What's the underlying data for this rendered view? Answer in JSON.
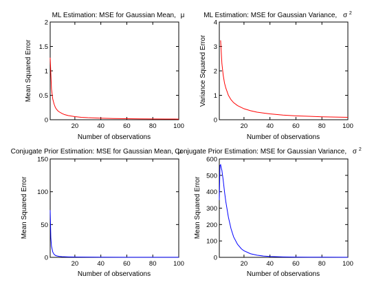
{
  "chart_data": [
    {
      "type": "line",
      "title": "ML Estimation: MSE for Gaussian Mean,",
      "title_symbol": "μ",
      "title_superscript": "",
      "xlabel": "Number of observations",
      "ylabel": "Mean Squared Error",
      "xlim": [
        1,
        100
      ],
      "ylim": [
        0,
        2
      ],
      "xticks": [
        20,
        40,
        60,
        80,
        100
      ],
      "yticks": [
        0,
        0.5,
        1,
        1.5,
        2
      ],
      "ytick_labels": [
        "0",
        "0.5",
        "1",
        "1.5",
        "2"
      ],
      "grid": false,
      "series": [
        {
          "color": "#ff0000",
          "x": [
            1,
            2,
            3,
            4,
            5,
            6,
            7,
            8,
            10,
            12,
            15,
            20,
            25,
            30,
            40,
            50,
            60,
            70,
            80,
            90,
            100
          ],
          "y": [
            1.27,
            0.63,
            0.42,
            0.32,
            0.25,
            0.21,
            0.18,
            0.16,
            0.13,
            0.105,
            0.085,
            0.063,
            0.05,
            0.042,
            0.032,
            0.025,
            0.021,
            0.018,
            0.016,
            0.014,
            0.013
          ]
        }
      ]
    },
    {
      "type": "line",
      "title": "ML Estimation: MSE for Gaussian Variance,",
      "title_symbol": "σ",
      "title_superscript": "2",
      "xlabel": "Number of observations",
      "ylabel": "Variance Squared Error",
      "xlim": [
        1,
        100
      ],
      "ylim": [
        0,
        4
      ],
      "xticks": [
        20,
        40,
        60,
        80,
        100
      ],
      "yticks": [
        0,
        1,
        2,
        3,
        4
      ],
      "ytick_labels": [
        "0",
        "1",
        "2",
        "3",
        "4"
      ],
      "grid": false,
      "series": [
        {
          "color": "#ff0000",
          "x": [
            2,
            3,
            4,
            5,
            6,
            8,
            10,
            12,
            15,
            20,
            25,
            30,
            40,
            50,
            60,
            70,
            80,
            90,
            100
          ],
          "y": [
            3.25,
            2.3,
            1.82,
            1.5,
            1.3,
            1.0,
            0.82,
            0.7,
            0.58,
            0.45,
            0.37,
            0.31,
            0.24,
            0.19,
            0.16,
            0.14,
            0.12,
            0.11,
            0.1
          ]
        }
      ]
    },
    {
      "type": "line",
      "title": "Conjugate Prior Estimation: MSE for Gaussian Mean,",
      "title_symbol": "μ",
      "title_superscript": "",
      "xlabel": "Number of observations",
      "ylabel": "Mean Squared Error",
      "xlim": [
        1,
        100
      ],
      "ylim": [
        0,
        150
      ],
      "xticks": [
        20,
        40,
        60,
        80,
        100
      ],
      "yticks": [
        0,
        50,
        100,
        150
      ],
      "ytick_labels": [
        "0",
        "50",
        "100",
        "150"
      ],
      "grid": false,
      "series": [
        {
          "color": "#0000ff",
          "x": [
            1,
            1.5,
            2,
            3,
            4,
            5,
            6,
            8,
            10,
            15,
            20,
            30,
            40,
            60,
            80,
            100
          ],
          "y": [
            72,
            30,
            17,
            8,
            4.5,
            3,
            2.2,
            1.5,
            1.1,
            0.7,
            0.5,
            0.35,
            0.25,
            0.17,
            0.12,
            0.1
          ]
        }
      ]
    },
    {
      "type": "line",
      "title": "Conjugate Prior Estimation: MSE for Gaussian Variance,",
      "title_symbol": "σ",
      "title_superscript": "2",
      "xlabel": "Number of observations",
      "ylabel": "Mean Squared Error",
      "xlim": [
        1,
        100
      ],
      "ylim": [
        0,
        600
      ],
      "xticks": [
        20,
        40,
        60,
        80,
        100
      ],
      "yticks": [
        0,
        100,
        200,
        300,
        400,
        500,
        600
      ],
      "ytick_labels": [
        "0",
        "100",
        "200",
        "300",
        "400",
        "500",
        "600"
      ],
      "grid": false,
      "series": [
        {
          "color": "#0000ff",
          "x": [
            1,
            1.5,
            2,
            2.5,
            3,
            4,
            5,
            6,
            8,
            10,
            12,
            15,
            18,
            20,
            25,
            30,
            35,
            40,
            50,
            60,
            70,
            80,
            100
          ],
          "y": [
            350,
            560,
            565,
            545,
            530,
            470,
            400,
            340,
            245,
            175,
            125,
            80,
            52,
            40,
            22,
            13,
            8,
            5,
            2.5,
            1.5,
            1,
            0.8,
            0.5
          ]
        }
      ]
    }
  ]
}
